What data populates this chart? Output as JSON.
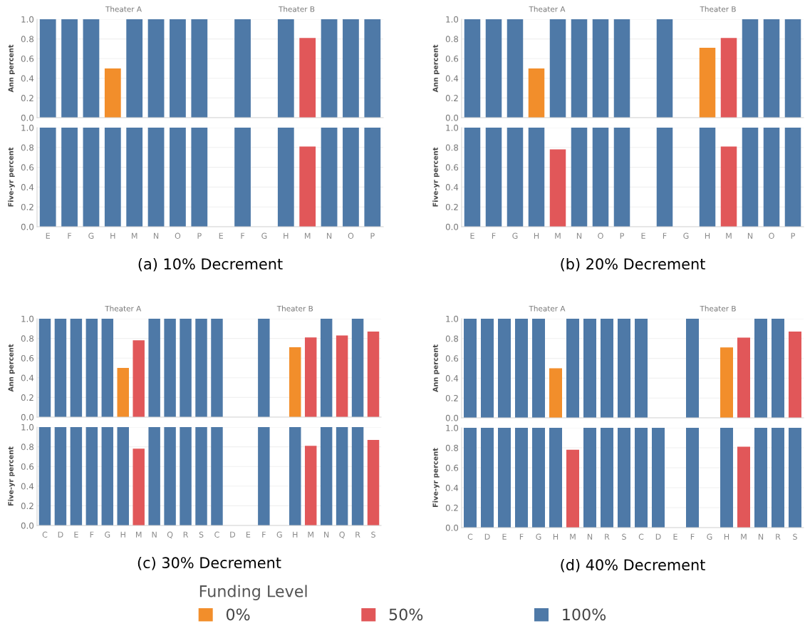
{
  "chart_data": [
    {
      "type": "bar",
      "ylabel": "Ann percent",
      "annotations": [
        "Theater A",
        "Theater B"
      ],
      "legend": "bottom",
      "legend_title": "Funding Level",
      "categories": [
        null,
        null,
        null,
        null,
        null,
        null,
        null,
        null,
        null,
        null,
        null,
        null,
        null,
        null,
        null,
        null
      ],
      "tick_labels": "y",
      "grid": "y",
      "ylim": [
        0,
        1
      ],
      "yticks": [
        {
          "value": 0,
          "label": "0.0"
        },
        {
          "value": 0.2,
          "label": "0.2"
        },
        {
          "value": 0.4,
          "label": "0.4"
        },
        {
          "value": 0.6,
          "label": "0.6"
        },
        {
          "value": 0.8,
          "label": "0.8"
        },
        {
          "value": 1,
          "label": "1.0"
        }
      ],
      "series": [
        {
          "name": "0%",
          "color": "#f28e2b",
          "values": [
            null,
            null,
            null,
            0.5,
            null,
            null,
            null,
            null,
            null,
            null,
            null,
            null,
            null,
            null,
            null,
            null
          ]
        },
        {
          "name": "50%",
          "color": "#e15759",
          "values": [
            null,
            null,
            null,
            null,
            null,
            null,
            null,
            null,
            null,
            null,
            null,
            null,
            0.81,
            null,
            null,
            null
          ]
        },
        {
          "name": "100%",
          "color": "#4e79a7",
          "values": [
            1,
            1,
            1,
            null,
            1,
            1,
            1,
            1,
            null,
            1,
            null,
            1,
            null,
            1,
            1,
            1
          ]
        }
      ]
    },
    {
      "type": "bar",
      "ylabel": "Ann percent",
      "annotations": [
        "Theater A",
        "Theater B"
      ],
      "categories": [
        null,
        null,
        null,
        null,
        null,
        null,
        null,
        null,
        null,
        null,
        null,
        null,
        null,
        null,
        null,
        null
      ],
      "tick_labels": "y",
      "grid": "y",
      "ylim": [
        0,
        1
      ],
      "yticks": [
        {
          "value": 0,
          "label": "0.0"
        },
        {
          "value": 0.2,
          "label": "0.2"
        },
        {
          "value": 0.4,
          "label": "0.4"
        },
        {
          "value": 0.6,
          "label": "0.6"
        },
        {
          "value": 0.8,
          "label": "0.8"
        },
        {
          "value": 1,
          "label": "1.0"
        }
      ],
      "series": [
        {
          "name": "0%",
          "color": "#f28e2b",
          "values": [
            null,
            null,
            null,
            0.5,
            null,
            null,
            null,
            null,
            null,
            null,
            null,
            0.71,
            null,
            null,
            null,
            null
          ]
        },
        {
          "name": "50%",
          "color": "#e15759",
          "values": [
            null,
            null,
            null,
            null,
            null,
            null,
            null,
            null,
            null,
            null,
            null,
            null,
            0.81,
            null,
            null,
            null
          ]
        },
        {
          "name": "100%",
          "color": "#4e79a7",
          "values": [
            1,
            1,
            1,
            null,
            1,
            1,
            1,
            1,
            null,
            1,
            null,
            null,
            null,
            1,
            1,
            1
          ]
        }
      ]
    },
    {
      "type": "bar",
      "ylabel": "Five-yr percent",
      "annotations": [
        "(a) 10% Decrement"
      ],
      "categories": [
        "E",
        "F",
        "G",
        "H",
        "M",
        "N",
        "O",
        "P",
        "E",
        "F",
        "G",
        "H",
        "M",
        "N",
        "O",
        "P"
      ],
      "grid": "y",
      "ylim": [
        0,
        1
      ],
      "yticks": [
        {
          "value": 0,
          "label": "0.0"
        },
        {
          "value": 0.2,
          "label": "0.2"
        },
        {
          "value": 0.4,
          "label": "0.4"
        },
        {
          "value": 0.6,
          "label": "0.6"
        },
        {
          "value": 0.8,
          "label": "0.8"
        },
        {
          "value": 1,
          "label": "1.0"
        }
      ],
      "series": [
        {
          "name": "50%",
          "color": "#e15759",
          "values": [
            null,
            null,
            null,
            null,
            null,
            null,
            null,
            null,
            null,
            null,
            null,
            null,
            0.81,
            null,
            null,
            null
          ]
        },
        {
          "name": "100%",
          "color": "#4e79a7",
          "values": [
            1,
            1,
            1,
            1,
            1,
            1,
            1,
            1,
            null,
            1,
            null,
            1,
            null,
            1,
            1,
            1
          ]
        }
      ]
    },
    {
      "type": "bar",
      "ylabel": "Five-yr percent",
      "annotations": [
        "(b) 20% Decrement"
      ],
      "categories": [
        "E",
        "F",
        "G",
        "H",
        "M",
        "N",
        "O",
        "P",
        "E",
        "F",
        "G",
        "H",
        "M",
        "N",
        "O",
        "P"
      ],
      "grid": "y",
      "ylim": [
        0,
        1
      ],
      "yticks": [
        {
          "value": 0,
          "label": "0.0"
        },
        {
          "value": 0.2,
          "label": "0.2"
        },
        {
          "value": 0.4,
          "label": "0.4"
        },
        {
          "value": 0.6,
          "label": "0.6"
        },
        {
          "value": 0.8,
          "label": "0.8"
        },
        {
          "value": 1,
          "label": "1.0"
        }
      ],
      "series": [
        {
          "name": "50%",
          "color": "#e15759",
          "values": [
            null,
            null,
            null,
            null,
            0.78,
            null,
            null,
            null,
            null,
            null,
            null,
            null,
            0.81,
            null,
            null,
            null
          ]
        },
        {
          "name": "100%",
          "color": "#4e79a7",
          "values": [
            1,
            1,
            1,
            1,
            null,
            1,
            1,
            1,
            null,
            1,
            null,
            1,
            null,
            1,
            1,
            1
          ]
        }
      ]
    },
    {
      "type": "bar",
      "ylabel": "Ann percent",
      "annotations": [
        "Theater A",
        "Theater B"
      ],
      "categories": [
        null,
        null,
        null,
        null,
        null,
        null,
        null,
        null,
        null,
        null,
        null,
        null,
        null,
        null,
        null,
        null,
        null,
        null,
        null,
        null,
        null,
        null
      ],
      "tick_labels": "y",
      "grid": "y",
      "ylim": [
        0,
        1
      ],
      "yticks": [
        {
          "value": 0,
          "label": "0.0"
        },
        {
          "value": 0.2,
          "label": "0.2"
        },
        {
          "value": 0.4,
          "label": "0.4"
        },
        {
          "value": 0.6,
          "label": "0.6"
        },
        {
          "value": 0.8,
          "label": "0.8"
        },
        {
          "value": 1,
          "label": "1.0"
        }
      ],
      "series": [
        {
          "name": "0%",
          "color": "#f28e2b",
          "values": [
            null,
            null,
            null,
            null,
            null,
            0.5,
            null,
            null,
            null,
            null,
            null,
            null,
            null,
            null,
            null,
            null,
            0.71,
            null,
            null,
            null,
            null,
            null
          ]
        },
        {
          "name": "50%",
          "color": "#e15759",
          "values": [
            null,
            null,
            null,
            null,
            null,
            null,
            0.78,
            null,
            null,
            null,
            null,
            null,
            null,
            null,
            null,
            null,
            null,
            0.81,
            null,
            0.83,
            null,
            0.87
          ]
        },
        {
          "name": "100%",
          "color": "#4e79a7",
          "values": [
            1,
            1,
            1,
            1,
            1,
            null,
            null,
            1,
            1,
            1,
            1,
            1,
            null,
            null,
            1,
            null,
            null,
            null,
            1,
            null,
            1,
            null
          ]
        }
      ]
    },
    {
      "type": "bar",
      "ylabel": "Ann percent",
      "annotations": [
        "Theater A",
        "Theater B"
      ],
      "categories": [
        null,
        null,
        null,
        null,
        null,
        null,
        null,
        null,
        null,
        null,
        null,
        null,
        null,
        null,
        null,
        null,
        null,
        null,
        null,
        null
      ],
      "tick_labels": "y",
      "grid": "y",
      "ylim": [
        0,
        1
      ],
      "yticks": [
        {
          "value": 0,
          "label": "0.0"
        },
        {
          "value": 0.2,
          "label": "0.2"
        },
        {
          "value": 0.4,
          "label": "0.4"
        },
        {
          "value": 0.6,
          "label": "0.6"
        },
        {
          "value": 0.8,
          "label": "0.8"
        },
        {
          "value": 1,
          "label": "1.0"
        }
      ],
      "series": [
        {
          "name": "0%",
          "color": "#f28e2b",
          "values": [
            null,
            null,
            null,
            null,
            null,
            0.5,
            null,
            null,
            null,
            null,
            null,
            null,
            null,
            null,
            null,
            0.71,
            null,
            null,
            null,
            null
          ]
        },
        {
          "name": "50%",
          "color": "#e15759",
          "values": [
            null,
            null,
            null,
            null,
            null,
            null,
            null,
            null,
            null,
            null,
            null,
            null,
            null,
            null,
            null,
            null,
            0.81,
            null,
            null,
            0.87
          ]
        },
        {
          "name": "100%",
          "color": "#4e79a7",
          "values": [
            1,
            1,
            1,
            1,
            1,
            null,
            1,
            1,
            1,
            1,
            1,
            null,
            null,
            1,
            null,
            null,
            null,
            1,
            1,
            null
          ]
        }
      ]
    },
    {
      "type": "bar",
      "ylabel": "Five-yr percent",
      "annotations": [
        "(c) 30% Decrement"
      ],
      "categories": [
        "C",
        "D",
        "E",
        "F",
        "G",
        "H",
        "M",
        "N",
        "Q",
        "R",
        "S",
        "C",
        "D",
        "E",
        "F",
        "G",
        "H",
        "M",
        "N",
        "Q",
        "R",
        "S"
      ],
      "grid": "y",
      "ylim": [
        0,
        1
      ],
      "yticks": [
        {
          "value": 0,
          "label": "0.0"
        },
        {
          "value": 0.2,
          "label": "0.2"
        },
        {
          "value": 0.4,
          "label": "0.4"
        },
        {
          "value": 0.6,
          "label": "0.6"
        },
        {
          "value": 0.8,
          "label": "0.8"
        },
        {
          "value": 1,
          "label": "1.0"
        }
      ],
      "series": [
        {
          "name": "50%",
          "color": "#e15759",
          "values": [
            null,
            null,
            null,
            null,
            null,
            null,
            0.78,
            null,
            null,
            null,
            null,
            null,
            null,
            null,
            null,
            null,
            null,
            0.81,
            null,
            null,
            null,
            0.87
          ]
        },
        {
          "name": "100%",
          "color": "#4e79a7",
          "values": [
            1,
            1,
            1,
            1,
            1,
            1,
            null,
            1,
            1,
            1,
            1,
            1,
            null,
            null,
            1,
            null,
            1,
            null,
            1,
            1,
            1,
            null
          ]
        }
      ]
    },
    {
      "type": "bar",
      "ylabel": "Five-yr percent",
      "annotations": [
        "(d) 40% Decrement"
      ],
      "categories": [
        "C",
        "D",
        "E",
        "F",
        "G",
        "H",
        "M",
        "N",
        "R",
        "S",
        "C",
        "D",
        "E",
        "F",
        "G",
        "H",
        "M",
        "N",
        "R",
        "S"
      ],
      "grid": "y",
      "ylim": [
        0,
        1
      ],
      "yticks": [
        {
          "value": 0,
          "label": "0.0"
        },
        {
          "value": 0.2,
          "label": "0.2"
        },
        {
          "value": 0.4,
          "label": "0.4"
        },
        {
          "value": 0.6,
          "label": "0.6"
        },
        {
          "value": 0.8,
          "label": "0.8"
        },
        {
          "value": 1,
          "label": "1.0"
        }
      ],
      "series": [
        {
          "name": "50%",
          "color": "#e15759",
          "values": [
            null,
            null,
            null,
            null,
            null,
            null,
            0.78,
            null,
            null,
            null,
            null,
            null,
            null,
            null,
            null,
            null,
            0.81,
            null,
            null,
            null
          ]
        },
        {
          "name": "100%",
          "color": "#4e79a7",
          "values": [
            1,
            1,
            1,
            1,
            1,
            1,
            null,
            1,
            1,
            1,
            1,
            1,
            null,
            1,
            null,
            1,
            null,
            1,
            1,
            1
          ]
        }
      ]
    }
  ]
}
